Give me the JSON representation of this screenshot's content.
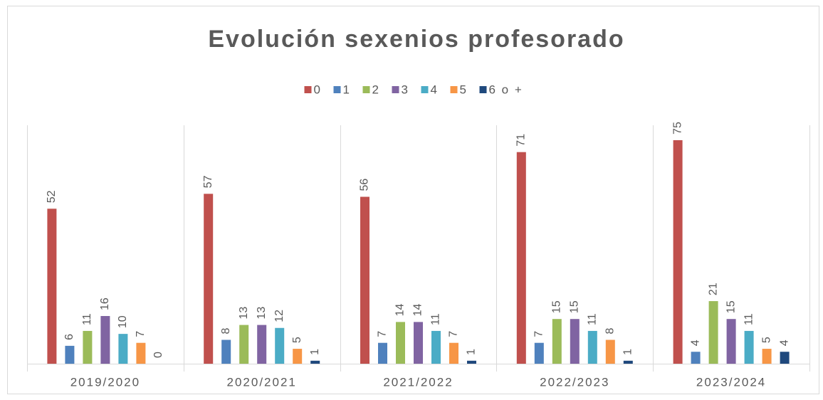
{
  "chart_data": {
    "type": "bar",
    "title": "Evolución sexenios profesorado",
    "categories": [
      "2019/2020",
      "2020/2021",
      "2021/2022",
      "2022/2023",
      "2023/2024"
    ],
    "series": [
      {
        "name": "0",
        "color": "#c0504d",
        "values": [
          52,
          57,
          56,
          71,
          75
        ]
      },
      {
        "name": "1",
        "color": "#4f81bd",
        "values": [
          6,
          8,
          7,
          7,
          4
        ]
      },
      {
        "name": "2",
        "color": "#9bbb59",
        "values": [
          11,
          13,
          14,
          15,
          21
        ]
      },
      {
        "name": "3",
        "color": "#8064a2",
        "values": [
          16,
          13,
          14,
          15,
          15
        ]
      },
      {
        "name": "4",
        "color": "#4bacc6",
        "values": [
          10,
          12,
          11,
          11,
          11
        ]
      },
      {
        "name": "5",
        "color": "#f79646",
        "values": [
          7,
          5,
          7,
          8,
          5
        ]
      },
      {
        "name": "6 o +",
        "color": "#1f497d",
        "values": [
          0,
          1,
          1,
          1,
          4
        ]
      }
    ],
    "ylim": [
      0,
      80
    ],
    "legend": "top"
  }
}
